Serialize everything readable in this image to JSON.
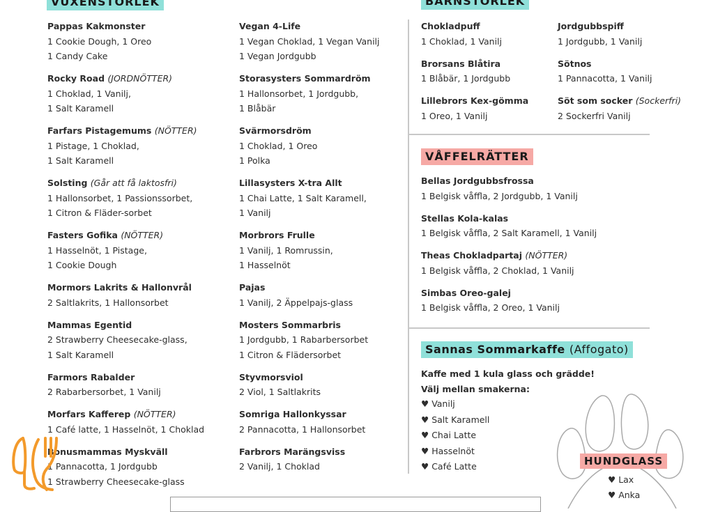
{
  "vuxen": {
    "title": "VUXENSTORLEK",
    "col1": [
      {
        "name": "Pappas Kakmonster",
        "note": "",
        "lines": [
          "1 Cookie Dough, 1 Oreo",
          "1 Candy Cake"
        ]
      },
      {
        "name": "Rocky Road",
        "note": "(JORDNÖTTER)",
        "lines": [
          "1 Choklad, 1 Vanilj,",
          "1 Salt Karamell"
        ]
      },
      {
        "name": "Farfars Pistagemums",
        "note": "(NÖTTER)",
        "lines": [
          "1 Pistage, 1 Choklad,",
          "1 Salt Karamell"
        ]
      },
      {
        "name": "Solsting",
        "note": "(Går att få laktosfri)",
        "lines": [
          "1 Hallonsorbet, 1 Passionssorbet,",
          "1 Citron & Fläder-sorbet"
        ]
      },
      {
        "name": "Fasters Gofika",
        "note": "(NÖTTER)",
        "lines": [
          "1 Hasselnöt, 1 Pistage,",
          "1 Cookie Dough"
        ]
      },
      {
        "name": "Mormors Lakrits & Hallonvrål",
        "note": "",
        "lines": [
          "2 Saltlakrits, 1 Hallonsorbet"
        ]
      },
      {
        "name": "Mammas Egentid",
        "note": "",
        "lines": [
          "2 Strawberry Cheesecake-glass,",
          "1 Salt Karamell"
        ]
      },
      {
        "name": "Farmors Rabalder",
        "note": "",
        "lines": [
          "2 Rabarbersorbet, 1 Vanilj"
        ]
      },
      {
        "name": "Morfars Kafferep",
        "note": "(NÖTTER)",
        "lines": [
          "1 Café latte, 1 Hasselnöt, 1 Choklad"
        ]
      },
      {
        "name": "Bonusmammas Myskväll",
        "note": "",
        "lines": [
          "1 Pannacotta, 1 Jordgubb",
          "1 Strawberry Cheesecake-glass"
        ]
      }
    ],
    "col2": [
      {
        "name": "Vegan 4-Life",
        "note": "",
        "lines": [
          "1 Vegan Choklad, 1 Vegan Vanilj",
          "1 Vegan Jordgubb"
        ]
      },
      {
        "name": "Storasysters Sommardröm",
        "note": "",
        "lines": [
          "1 Hallonsorbet, 1 Jordgubb,",
          "1 Blåbär"
        ]
      },
      {
        "name": "Svärmorsdröm",
        "note": "",
        "lines": [
          "1 Choklad, 1 Oreo",
          "1 Polka"
        ]
      },
      {
        "name": "Lillasysters X-tra Allt",
        "note": "",
        "lines": [
          "1 Chai Latte, 1 Salt Karamell,",
          "1 Vanilj"
        ]
      },
      {
        "name": "Morbrors Frulle",
        "note": "",
        "lines": [
          "1 Vanilj, 1 Romrussin,",
          "1 Hasselnöt"
        ]
      },
      {
        "name": "Pajas",
        "note": "",
        "lines": [
          "1 Vanilj, 2 Äppelpajs-glass"
        ]
      },
      {
        "name": "Mosters Sommarbris",
        "note": "",
        "lines": [
          "1 Jordgubb, 1 Rabarbersorbet",
          "1 Citron & Flädersorbet"
        ]
      },
      {
        "name": "Styvmorsviol",
        "note": "",
        "lines": [
          "2 Viol, 1 Saltlakrits"
        ]
      },
      {
        "name": "Somriga Hallonkyssar",
        "note": "",
        "lines": [
          "2 Pannacotta, 1 Hallonsorbet"
        ]
      },
      {
        "name": "Farbrors Marängsviss",
        "note": "",
        "lines": [
          "2 Vanilj, 1 Choklad"
        ]
      }
    ]
  },
  "barn": {
    "title": "BARNSTORLEK",
    "col1": [
      {
        "name": "Chokladpuff",
        "note": "",
        "lines": [
          "1 Choklad, 1 Vanilj"
        ]
      },
      {
        "name": "Brorsans Blåtira",
        "note": "",
        "lines": [
          "1 Blåbär, 1 Jordgubb"
        ]
      },
      {
        "name": "Lillebrors Kex-gömma",
        "note": "",
        "lines": [
          "1 Oreo, 1 Vanilj"
        ]
      }
    ],
    "col2": [
      {
        "name": "Jordgubbspiff",
        "note": "",
        "lines": [
          "1 Jordgubb, 1 Vanilj"
        ]
      },
      {
        "name": "Sötnos",
        "note": "",
        "lines": [
          "1 Pannacotta, 1 Vanilj"
        ]
      },
      {
        "name": "Söt som socker",
        "note": "(Sockerfri)",
        "lines": [
          "2 Sockerfri Vanilj"
        ]
      }
    ]
  },
  "vaffel": {
    "title": "VÅFFELRÄTTER",
    "items": [
      {
        "name": "Bellas Jordgubbsfrossa",
        "note": "",
        "lines": [
          "1 Belgisk våffla, 2 Jordgubb, 1 Vanilj"
        ]
      },
      {
        "name": "Stellas Kola-kalas",
        "note": "",
        "lines": [
          "1 Belgisk våffla, 2 Salt Karamell, 1 Vanilj"
        ]
      },
      {
        "name": "Theas Chokladpartaj",
        "note": "(NÖTTER)",
        "lines": [
          "1 Belgisk våffla, 2 Choklad, 1 Vanilj"
        ]
      },
      {
        "name": "Simbas Oreo-galej",
        "note": "",
        "lines": [
          "1 Belgisk våffla, 2 Oreo, 1 Vanilj"
        ]
      }
    ]
  },
  "kaffe": {
    "title": "Sannas Sommarkaffe",
    "subtitle": "(Affogato)",
    "intro1": "Kaffe med 1 kula glass och grädde!",
    "intro2": "Välj mellan smakerna:",
    "flavors": [
      "Vanilj",
      "Salt Karamell",
      "Chai Latte",
      "Hasselnöt",
      "Café Latte"
    ]
  },
  "hund": {
    "title": "HUNDGLASS",
    "flavors": [
      "Lax",
      "Anka"
    ]
  },
  "colors": {
    "teal": "#8fe0d9",
    "pink": "#f6a9a5",
    "logo": "#f39a2b"
  },
  "logo_icon": "fork-spoon-logo-icon",
  "bullet_icon": "heart-icon"
}
